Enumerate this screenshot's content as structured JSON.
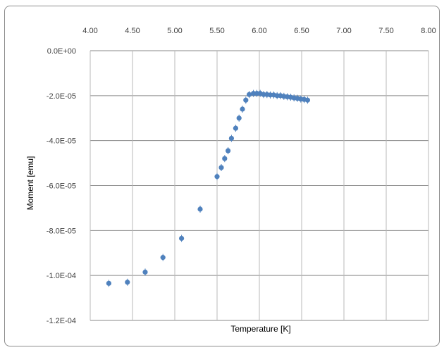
{
  "chart_data": {
    "type": "scatter",
    "title": "",
    "xlabel": "Temperature [K]",
    "ylabel": "Moment [emu]",
    "xlim": [
      4.0,
      8.0
    ],
    "ylim": [
      -0.00012,
      0.0
    ],
    "x_ticks": [
      4.0,
      4.5,
      5.0,
      5.5,
      6.0,
      6.5,
      7.0,
      7.5,
      8.0
    ],
    "x_tick_labels": [
      "4.00",
      "4.50",
      "5.00",
      "5.50",
      "6.00",
      "6.50",
      "7.00",
      "7.50",
      "8.00"
    ],
    "y_ticks": [
      0.0,
      -2e-05,
      -4e-05,
      -6e-05,
      -8e-05,
      -0.0001,
      -0.00012
    ],
    "y_tick_labels": [
      "0.0E+00",
      "-2.0E-05",
      "-4.0E-05",
      "-6.0E-05",
      "-8.0E-05",
      "-1.0E-04",
      "-1.2E-04"
    ],
    "x_axis_position": "top",
    "grid": true,
    "legend": "none",
    "marker_color": "#4f81bd",
    "series": [
      {
        "x": [
          4.22,
          4.44,
          4.65,
          4.86,
          5.08,
          5.3,
          5.5,
          5.55,
          5.59,
          5.63,
          5.67,
          5.72,
          5.76,
          5.8,
          5.84,
          5.88,
          5.93,
          5.97,
          6.01,
          6.05,
          6.09,
          6.13,
          6.17,
          6.21,
          6.25,
          6.29,
          6.33,
          6.37,
          6.41,
          6.45,
          6.49,
          6.53,
          6.57
        ],
        "y": [
          -0.0001035,
          -0.000103,
          -9.85e-05,
          -9.2e-05,
          -8.35e-05,
          -7.05e-05,
          -5.6e-05,
          -5.2e-05,
          -4.8e-05,
          -4.45e-05,
          -3.9e-05,
          -3.45e-05,
          -3e-05,
          -2.6e-05,
          -2.2e-05,
          -1.95e-05,
          -1.9e-05,
          -1.9e-05,
          -1.9e-05,
          -1.95e-05,
          -1.95e-05,
          -1.97e-05,
          -1.97e-05,
          -2e-05,
          -2e-05,
          -2.03e-05,
          -2.05e-05,
          -2.07e-05,
          -2.1e-05,
          -2.12e-05,
          -2.15e-05,
          -2.17e-05,
          -2.2e-05
        ]
      }
    ]
  }
}
